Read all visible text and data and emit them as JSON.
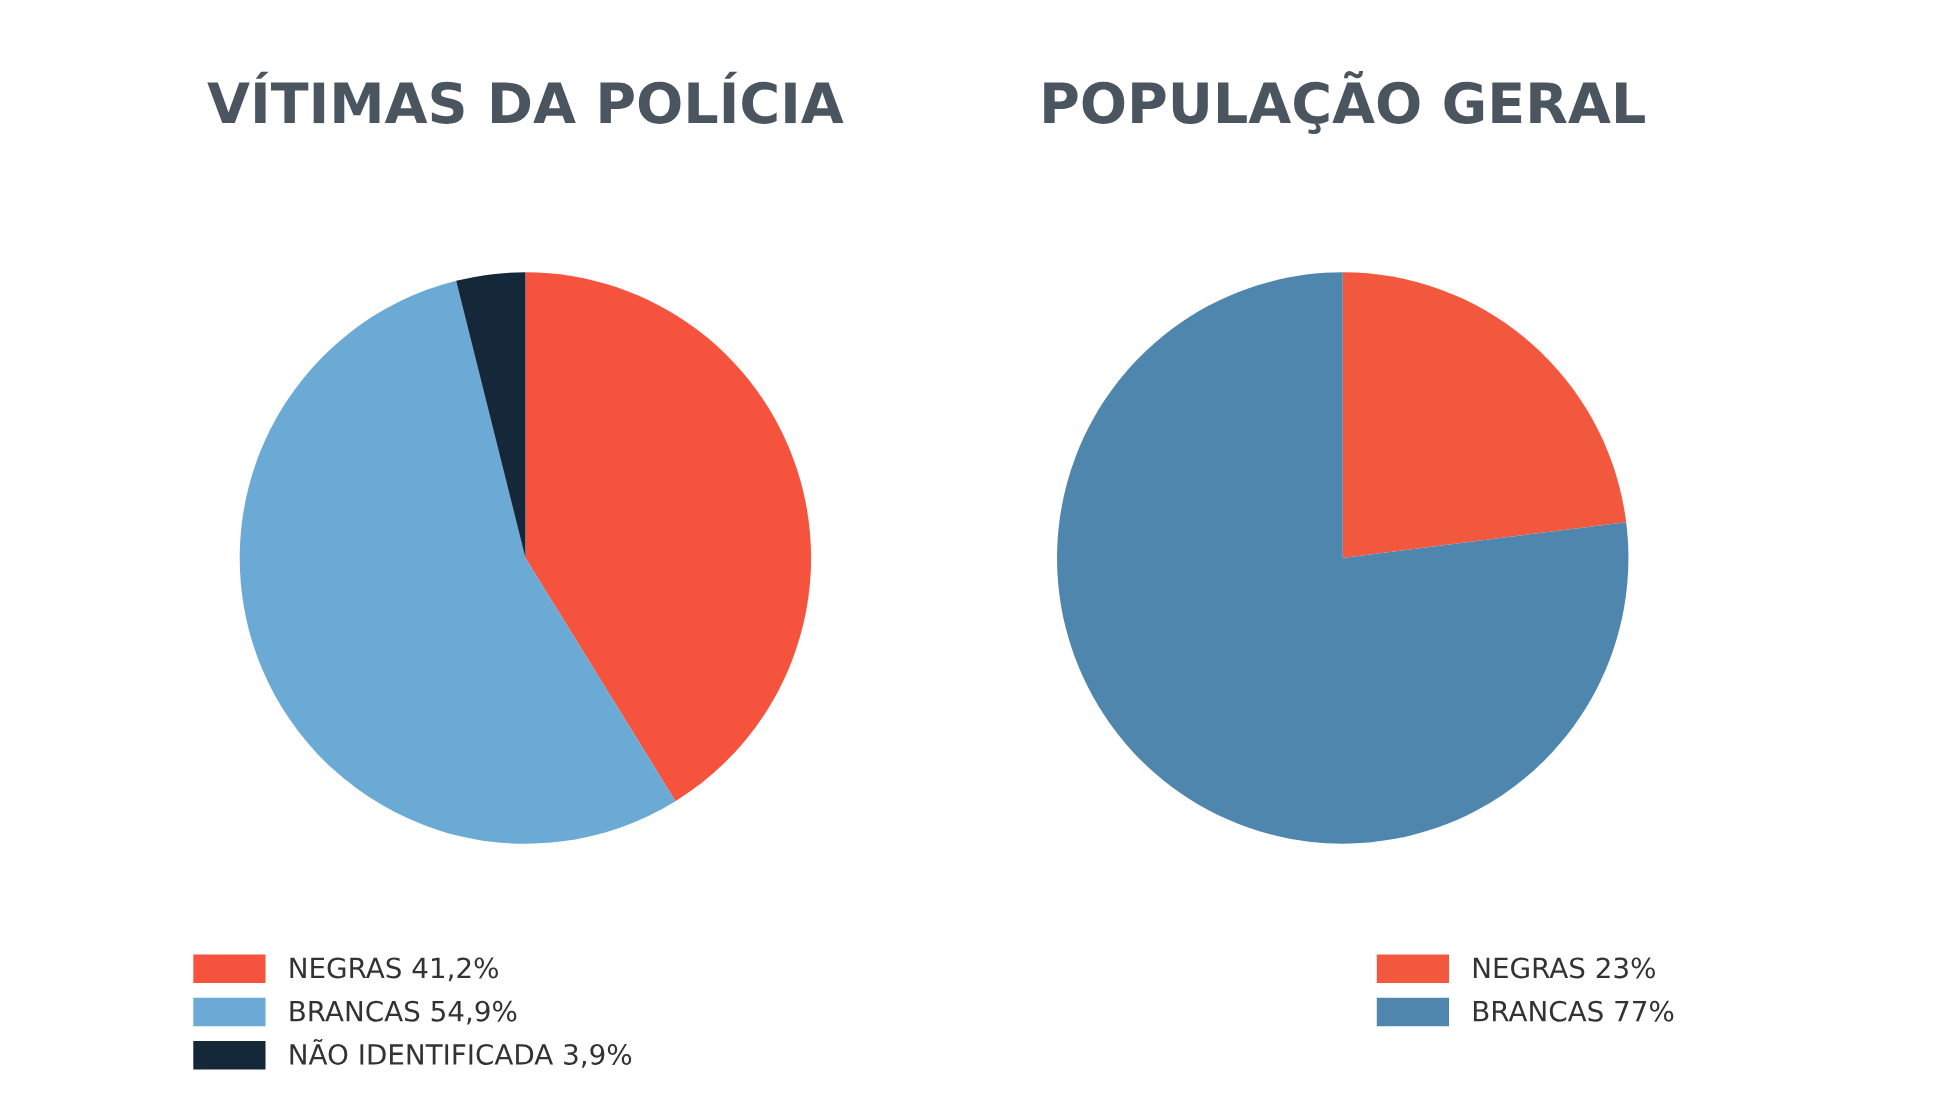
{
  "chart_data": [
    {
      "type": "pie",
      "title": "VÍTIMAS DA POLÍCIA",
      "categories": [
        "NEGRAS",
        "BRANCAS",
        "NÃO IDENTIFICADA"
      ],
      "values": [
        41.2,
        54.9,
        3.9
      ],
      "value_labels": [
        "41,2%",
        "54,9%",
        "3,9%"
      ],
      "colors": [
        "#f5533d",
        "#6aaad4",
        "#14283a"
      ],
      "legend": "bottom left"
    },
    {
      "type": "pie",
      "title": "POPULAÇÃO GERAL",
      "categories": [
        "NEGRAS",
        "BRANCAS"
      ],
      "values": [
        23,
        77
      ],
      "value_labels": [
        "23%",
        "77%"
      ],
      "colors": [
        "#f2583e",
        "#4f86ad"
      ],
      "legend": "bottom right"
    }
  ]
}
